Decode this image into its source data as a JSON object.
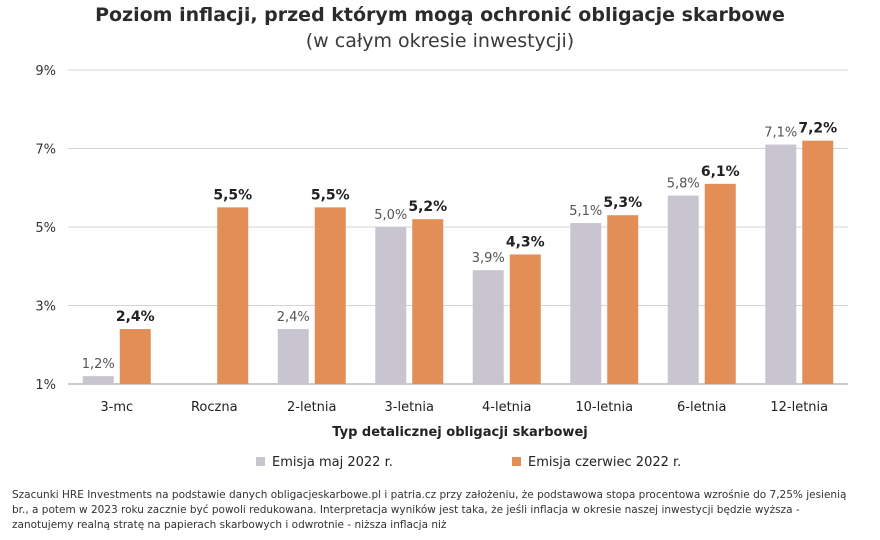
{
  "chart_data": {
    "type": "bar",
    "title": "Poziom inflacji, przed którym mogą ochronić obligacje skarbowe",
    "subtitle": "(w całym okresie inwestycji)",
    "xlabel": "Typ detalicznej obligacji skarbowej",
    "ylabel": "",
    "ylim": [
      1,
      9
    ],
    "yticks": [
      1,
      3,
      5,
      7,
      9
    ],
    "ytick_labels": [
      "1%",
      "3%",
      "5%",
      "7%",
      "9%"
    ],
    "grid": true,
    "legend_position": "bottom",
    "categories": [
      "3-mc",
      "Roczna",
      "2-letnia",
      "3-letnia",
      "4-letnia",
      "10-letnia",
      "6-letnia",
      "12-letnia"
    ],
    "series": [
      {
        "name": "Emisja maj 2022 r.",
        "color": "#c8c5d0",
        "values": [
          1.2,
          null,
          2.4,
          5.0,
          3.9,
          5.1,
          5.8,
          7.1
        ],
        "labels": [
          "1,2%",
          "",
          "2,4%",
          "5,0%",
          "3,9%",
          "5,1%",
          "5,8%",
          "7,1%"
        ]
      },
      {
        "name": "Emisja czerwiec 2022 r.",
        "color": "#e38d57",
        "values": [
          2.4,
          5.5,
          5.5,
          5.2,
          4.3,
          5.3,
          6.1,
          7.2
        ],
        "labels": [
          "2,4%",
          "5,5%",
          "5,5%",
          "5,2%",
          "4,3%",
          "5,3%",
          "6,1%",
          "7,2%"
        ]
      }
    ]
  },
  "footnote": "Szacunki HRE Investments na podstawie danych obligacjeskarbowe.pl i patria.cz przy założeniu, że podstawowa stopa procentowa wzrośnie do 7,25% jesienią br., a potem w 2023 roku zacznie być powoli redukowana. Interpretacja wyników jest taka, że jeśli inflacja w okresie naszej inwestycji będzie wyższa - zanotujemy realną stratę na papierach skarbowych i odwrotnie - niższa inflacja niż"
}
